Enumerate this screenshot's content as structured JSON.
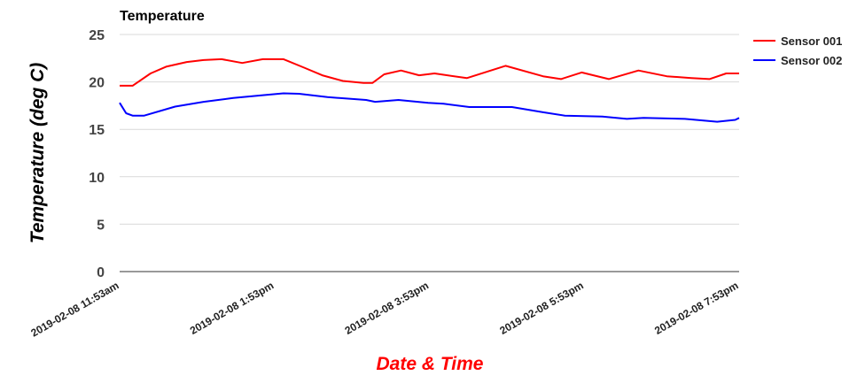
{
  "chart_data": {
    "type": "line",
    "title": "Temperature",
    "xlabel": "Date & Time",
    "ylabel": "Temperature (deg C)",
    "ylim": [
      0,
      25
    ],
    "yticks": [
      "0",
      "5",
      "10",
      "15",
      "20",
      "25"
    ],
    "xlim": [
      "2019-02-08 11:53",
      "2019-02-08 19:53"
    ],
    "xticks": [
      {
        "time": "2019-02-08 11:53",
        "label": "2019-02-08 11:53am"
      },
      {
        "time": "2019-02-08 13:53",
        "label": "2019-02-08 1:53pm"
      },
      {
        "time": "2019-02-08 15:53",
        "label": "2019-02-08 3:53pm"
      },
      {
        "time": "2019-02-08 17:53",
        "label": "2019-02-08 5:53pm"
      },
      {
        "time": "2019-02-08 19:53",
        "label": "2019-02-08 7:53pm"
      }
    ],
    "grid": true,
    "legend_position": "right",
    "xlabel_color": "#ff0000",
    "series": [
      {
        "name": "Sensor 001",
        "color": "#ff0000",
        "x": [
          "2019-02-08 11:53",
          "2019-02-08 12:03",
          "2019-02-08 12:17",
          "2019-02-08 12:29",
          "2019-02-08 12:45",
          "2019-02-08 12:58",
          "2019-02-08 13:12",
          "2019-02-08 13:28",
          "2019-02-08 13:44",
          "2019-02-08 14:00",
          "2019-02-08 14:16",
          "2019-02-08 14:30",
          "2019-02-08 14:46",
          "2019-02-08 15:02",
          "2019-02-08 15:09",
          "2019-02-08 15:18",
          "2019-02-08 15:31",
          "2019-02-08 15:45",
          "2019-02-08 15:57",
          "2019-02-08 16:22",
          "2019-02-08 16:52",
          "2019-02-08 17:21",
          "2019-02-08 17:35",
          "2019-02-08 17:51",
          "2019-02-08 18:12",
          "2019-02-08 18:35",
          "2019-02-08 18:57",
          "2019-02-08 19:16",
          "2019-02-08 19:30",
          "2019-02-08 19:43",
          "2019-02-08 19:53"
        ],
        "values": [
          19.6,
          19.6,
          20.9,
          21.6,
          22.1,
          22.3,
          22.4,
          22.0,
          22.4,
          22.4,
          21.5,
          20.7,
          20.1,
          19.9,
          19.9,
          20.8,
          21.2,
          20.7,
          20.9,
          20.4,
          21.7,
          20.6,
          20.3,
          21.0,
          20.3,
          21.2,
          20.6,
          20.4,
          20.3,
          20.9,
          20.9
        ]
      },
      {
        "name": "Sensor 002",
        "color": "#0000ff",
        "x": [
          "2019-02-08 11:53",
          "2019-02-08 11:58",
          "2019-02-08 12:03",
          "2019-02-08 12:12",
          "2019-02-08 12:36",
          "2019-02-08 12:58",
          "2019-02-08 13:21",
          "2019-02-08 13:44",
          "2019-02-08 14:00",
          "2019-02-08 14:12",
          "2019-02-08 14:34",
          "2019-02-08 15:04",
          "2019-02-08 15:11",
          "2019-02-08 15:29",
          "2019-02-08 15:52",
          "2019-02-08 16:04",
          "2019-02-08 16:24",
          "2019-02-08 16:57",
          "2019-02-08 17:21",
          "2019-02-08 17:38",
          "2019-02-08 18:07",
          "2019-02-08 18:26",
          "2019-02-08 18:39",
          "2019-02-08 19:11",
          "2019-02-08 19:36",
          "2019-02-08 19:50",
          "2019-02-08 19:53"
        ],
        "values": [
          17.8,
          16.7,
          16.45,
          16.45,
          17.4,
          17.9,
          18.3,
          18.6,
          18.8,
          18.75,
          18.4,
          18.1,
          17.9,
          18.1,
          17.8,
          17.7,
          17.35,
          17.35,
          16.8,
          16.45,
          16.35,
          16.1,
          16.2,
          16.1,
          15.8,
          16.0,
          16.2
        ]
      }
    ]
  }
}
